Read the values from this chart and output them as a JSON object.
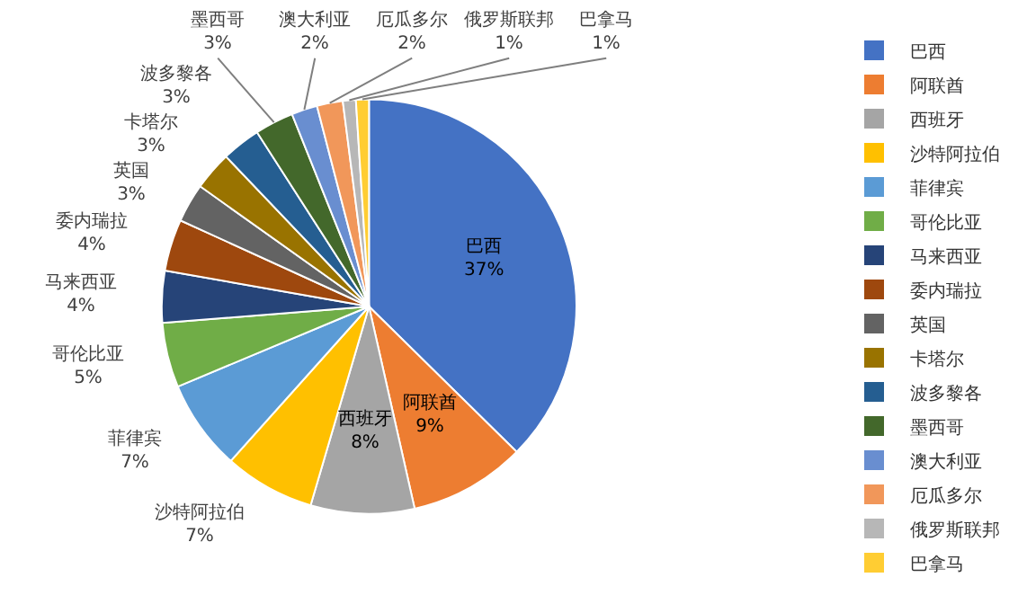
{
  "chart_data": {
    "type": "pie",
    "legend": "right",
    "categories": [
      "巴西",
      "阿联酋",
      "西班牙",
      "沙特阿拉伯",
      "菲律宾",
      "哥伦比亚",
      "马来西亚",
      "委内瑞拉",
      "英国",
      "卡塔尔",
      "波多黎各",
      "墨西哥",
      "澳大利亚",
      "厄瓜多尔",
      "俄罗斯联邦",
      "巴拿马"
    ],
    "values": [
      37,
      9,
      8,
      7,
      7,
      5,
      4,
      4,
      3,
      3,
      3,
      3,
      2,
      2,
      1,
      1
    ],
    "value_labels": [
      "37%",
      "9%",
      "8%",
      "7%",
      "7%",
      "5%",
      "4%",
      "4%",
      "3%",
      "3%",
      "3%",
      "3%",
      "2%",
      "2%",
      "1%",
      "1%"
    ],
    "colors": [
      "#4472c4",
      "#ed7d31",
      "#a5a5a5",
      "#ffc000",
      "#5b9bd5",
      "#70ad47",
      "#264478",
      "#9e480e",
      "#636363",
      "#997300",
      "#255e91",
      "#43682b",
      "#698ed0",
      "#f1975a",
      "#b7b7b7",
      "#ffcd33"
    ]
  }
}
